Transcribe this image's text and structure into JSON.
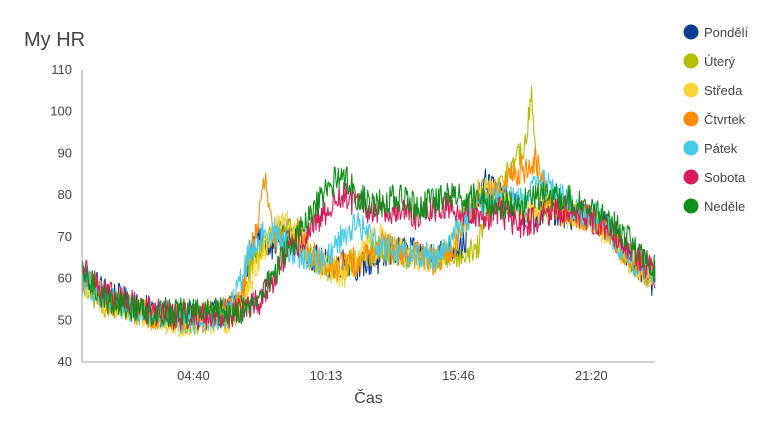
{
  "chart_data": {
    "type": "line",
    "title": "My HR",
    "xlabel": "Čas",
    "ylabel": "",
    "ylim": [
      40,
      110
    ],
    "yticks": [
      40,
      50,
      60,
      70,
      80,
      90,
      100,
      110
    ],
    "xlim": [
      "00:00",
      "24:00"
    ],
    "xticks": [
      "04:40",
      "10:13",
      "15:46",
      "21:20"
    ],
    "grid": false,
    "legend_position": "right",
    "series": [
      {
        "name": "Pondělí",
        "color": "#0b3d91",
        "x": [
          "00:00",
          "01:00",
          "02:00",
          "03:00",
          "04:00",
          "05:00",
          "06:00",
          "06:40",
          "07:00",
          "07:30",
          "08:00",
          "08:30",
          "09:00",
          "09:30",
          "10:00",
          "10:30",
          "11:00",
          "11:30",
          "12:00",
          "12:30",
          "13:00",
          "13:30",
          "14:00",
          "14:30",
          "15:00",
          "15:30",
          "16:00",
          "16:30",
          "17:00",
          "17:30",
          "18:00",
          "18:30",
          "19:00",
          "19:30",
          "20:00",
          "20:30",
          "21:00",
          "21:30",
          "22:00",
          "22:30",
          "23:00",
          "23:30",
          "24:00"
        ],
        "values": [
          61,
          57,
          54,
          52,
          51,
          51,
          52,
          55,
          65,
          70,
          68,
          72,
          69,
          66,
          64,
          63,
          64,
          63,
          64,
          64,
          66,
          67,
          66,
          66,
          66,
          67,
          68,
          78,
          84,
          80,
          78,
          76,
          75,
          76,
          76,
          75,
          75,
          74,
          72,
          68,
          65,
          62,
          58
        ]
      },
      {
        "name": "Úterý",
        "color": "#b5bd00",
        "x": [
          "00:00",
          "01:00",
          "02:00",
          "03:00",
          "04:00",
          "05:00",
          "06:00",
          "06:40",
          "07:00",
          "07:30",
          "08:00",
          "08:30",
          "09:00",
          "09:30",
          "10:00",
          "10:30",
          "11:00",
          "11:30",
          "12:00",
          "12:30",
          "13:00",
          "13:30",
          "14:00",
          "14:30",
          "15:00",
          "15:30",
          "16:00",
          "16:30",
          "17:00",
          "17:30",
          "18:00",
          "18:30",
          "18:50",
          "19:10",
          "19:30",
          "20:00",
          "20:30",
          "21:00",
          "21:30",
          "22:00",
          "22:30",
          "23:00",
          "23:30",
          "24:00"
        ],
        "values": [
          58,
          54,
          53,
          51,
          50,
          50,
          51,
          53,
          62,
          68,
          70,
          73,
          69,
          65,
          63,
          62,
          63,
          64,
          66,
          66,
          67,
          66,
          65,
          65,
          65,
          66,
          66,
          66,
          75,
          82,
          88,
          90,
          103,
          80,
          77,
          77,
          76,
          75,
          74,
          72,
          68,
          65,
          62,
          60
        ]
      },
      {
        "name": "Středa",
        "color": "#fcd535",
        "x": [
          "00:00",
          "01:00",
          "02:00",
          "03:00",
          "04:00",
          "05:00",
          "06:00",
          "06:30",
          "07:00",
          "07:30",
          "08:00",
          "08:30",
          "09:00",
          "09:30",
          "10:00",
          "10:30",
          "11:00",
          "11:30",
          "12:00",
          "12:30",
          "13:00",
          "13:30",
          "14:00",
          "14:30",
          "15:00",
          "15:30",
          "16:00",
          "16:30",
          "17:00",
          "17:30",
          "18:00",
          "18:30",
          "19:00",
          "19:30",
          "20:00",
          "20:30",
          "21:00",
          "21:30",
          "22:00",
          "22:30",
          "23:00",
          "23:30",
          "24:00"
        ],
        "values": [
          59,
          54,
          52,
          50,
          49,
          50,
          50,
          52,
          58,
          66,
          71,
          74,
          70,
          66,
          63,
          62,
          61,
          64,
          68,
          70,
          67,
          66,
          65,
          65,
          65,
          68,
          74,
          80,
          82,
          80,
          78,
          77,
          76,
          76,
          75,
          75,
          74,
          73,
          71,
          67,
          64,
          62,
          61
        ]
      },
      {
        "name": "Čtvrtek",
        "color": "#ff8c00",
        "x": [
          "00:00",
          "01:00",
          "02:00",
          "03:00",
          "04:00",
          "05:00",
          "06:00",
          "06:40",
          "07:00",
          "07:20",
          "07:40",
          "08:00",
          "08:30",
          "09:00",
          "09:30",
          "10:00",
          "10:30",
          "11:00",
          "11:30",
          "12:00",
          "12:30",
          "13:00",
          "13:30",
          "14:00",
          "14:30",
          "15:00",
          "15:30",
          "16:00",
          "16:30",
          "17:00",
          "17:30",
          "18:00",
          "18:30",
          "19:00",
          "19:30",
          "20:00",
          "20:30",
          "21:00",
          "21:30",
          "22:00",
          "22:30",
          "23:00",
          "23:30",
          "24:00"
        ],
        "values": [
          60,
          55,
          53,
          51,
          51,
          51,
          52,
          56,
          66,
          72,
          84,
          70,
          68,
          72,
          67,
          64,
          62,
          64,
          64,
          66,
          68,
          67,
          66,
          66,
          64,
          64,
          66,
          74,
          78,
          81,
          80,
          85,
          86,
          88,
          80,
          77,
          76,
          75,
          74,
          72,
          68,
          65,
          62,
          60
        ]
      },
      {
        "name": "Pátek",
        "color": "#45cbea",
        "x": [
          "00:00",
          "01:00",
          "02:00",
          "03:00",
          "04:00",
          "05:00",
          "06:00",
          "06:20",
          "06:40",
          "07:00",
          "07:30",
          "08:00",
          "08:30",
          "09:00",
          "09:30",
          "10:00",
          "10:30",
          "11:00",
          "11:30",
          "12:00",
          "12:30",
          "13:00",
          "13:30",
          "14:00",
          "14:30",
          "15:00",
          "15:30",
          "16:00",
          "16:30",
          "17:00",
          "17:30",
          "18:00",
          "18:30",
          "19:00",
          "19:30",
          "20:00",
          "20:30",
          "21:00",
          "21:30",
          "22:00",
          "22:30",
          "23:00",
          "23:30",
          "24:00"
        ],
        "values": [
          60,
          55,
          53,
          51,
          50,
          50,
          51,
          54,
          60,
          66,
          70,
          72,
          68,
          66,
          65,
          64,
          67,
          71,
          73,
          71,
          68,
          67,
          66,
          66,
          65,
          66,
          70,
          74,
          76,
          78,
          80,
          79,
          78,
          84,
          82,
          80,
          77,
          76,
          75,
          72,
          68,
          65,
          62,
          61
        ]
      },
      {
        "name": "Sobota",
        "color": "#d81b5a",
        "x": [
          "00:00",
          "01:00",
          "02:00",
          "03:00",
          "04:00",
          "05:00",
          "06:00",
          "07:00",
          "07:30",
          "08:00",
          "08:30",
          "09:00",
          "09:30",
          "10:00",
          "10:30",
          "11:00",
          "11:30",
          "12:00",
          "12:30",
          "13:00",
          "13:30",
          "14:00",
          "14:30",
          "15:00",
          "15:30",
          "16:00",
          "16:30",
          "17:00",
          "17:30",
          "18:00",
          "18:30",
          "19:00",
          "19:30",
          "20:00",
          "20:30",
          "21:00",
          "21:30",
          "22:00",
          "22:30",
          "23:00",
          "23:30",
          "24:00"
        ],
        "values": [
          63,
          56,
          54,
          52,
          51,
          51,
          51,
          53,
          55,
          60,
          65,
          68,
          71,
          74,
          78,
          80,
          78,
          76,
          77,
          76,
          76,
          75,
          76,
          77,
          77,
          76,
          75,
          75,
          76,
          74,
          73,
          74,
          76,
          76,
          77,
          75,
          74,
          72,
          70,
          67,
          64,
          61
        ]
      },
      {
        "name": "Neděle",
        "color": "#0d8f1a",
        "x": [
          "00:00",
          "01:00",
          "02:00",
          "03:00",
          "04:00",
          "05:00",
          "06:00",
          "07:00",
          "07:30",
          "08:00",
          "08:30",
          "09:00",
          "09:30",
          "10:00",
          "10:30",
          "11:00",
          "11:30",
          "12:00",
          "12:30",
          "13:00",
          "13:30",
          "14:00",
          "14:30",
          "15:00",
          "15:30",
          "16:00",
          "16:30",
          "17:00",
          "17:30",
          "18:00",
          "18:30",
          "19:00",
          "19:30",
          "20:00",
          "20:30",
          "21:00",
          "21:30",
          "22:00",
          "22:30",
          "23:00",
          "23:30",
          "24:00"
        ],
        "values": [
          61,
          55,
          53,
          52,
          52,
          52,
          52,
          53,
          56,
          61,
          66,
          70,
          74,
          79,
          83,
          85,
          80,
          78,
          78,
          79,
          79,
          77,
          78,
          79,
          80,
          79,
          80,
          78,
          77,
          78,
          79,
          80,
          80,
          79,
          79,
          77,
          76,
          74,
          72,
          69,
          65,
          62
        ]
      }
    ]
  }
}
